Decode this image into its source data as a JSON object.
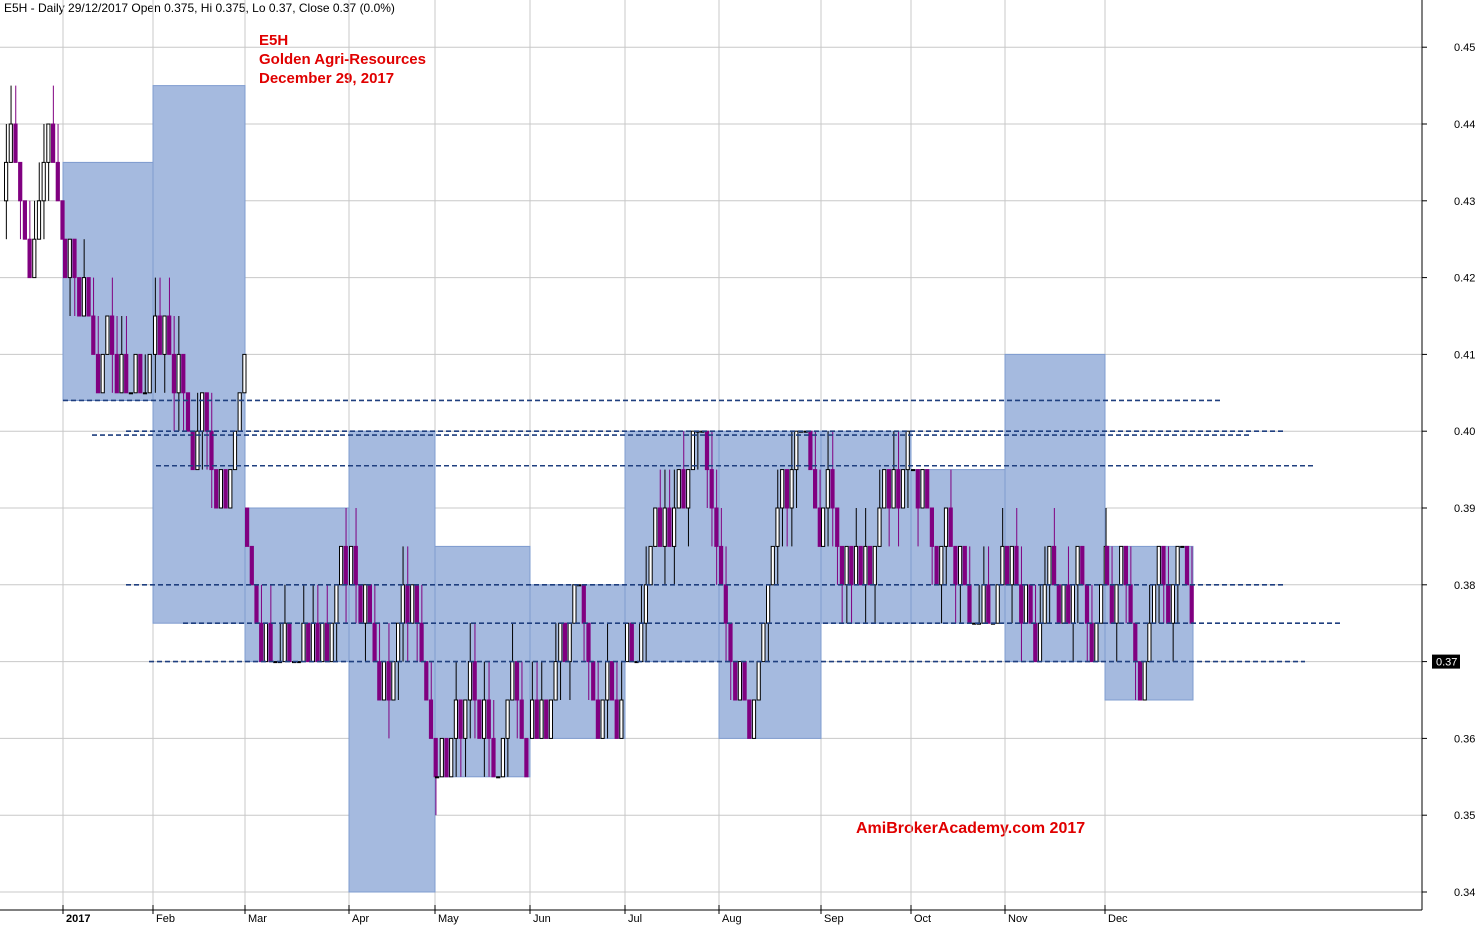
{
  "header": {
    "text": "E5H - Daily 29/12/2017 Open 0.375, Hi 0.375, Lo 0.37, Close 0.37 (0.0%)"
  },
  "titles": {
    "ticker": "E5H",
    "company": "Golden Agri-Resources",
    "date": "December 29, 2017"
  },
  "watermark": "AmiBrokerAcademy.com  2017",
  "colors": {
    "box_fill": "#a5badf",
    "box_stroke": "#7f9ccf",
    "up_bar": "#000000",
    "down_bar": "#800080",
    "support_line": "#1f3f7f",
    "grid": "#c8c8c8"
  },
  "chart_data": {
    "type": "candlestick",
    "symbol": "E5H",
    "ylim": [
      0.338,
      0.456
    ],
    "yticks": [
      0.34,
      0.35,
      0.36,
      0.37,
      0.38,
      0.39,
      0.4,
      0.41,
      0.42,
      0.43,
      0.44,
      0.45
    ],
    "ytick_labels": [
      "0.34",
      "0.35",
      "0.36",
      "0.37",
      "0.38",
      "0.39",
      "0.40",
      "0.41",
      "0.42",
      "0.43",
      "0.44",
      "0.45"
    ],
    "last_price": "0.37",
    "x_labels": [
      "2017",
      "Feb",
      "Mar",
      "Apr",
      "May",
      "Jun",
      "Jul",
      "Aug",
      "Sep",
      "Oct",
      "Nov",
      "Dec"
    ],
    "month_boxes": [
      {
        "month": "Jan",
        "high": 0.435,
        "low": 0.404
      },
      {
        "month": "Feb",
        "high": 0.445,
        "low": 0.375
      },
      {
        "month": "Mar",
        "high": 0.39,
        "low": 0.37
      },
      {
        "month": "Apr",
        "high": 0.4,
        "low": 0.34
      },
      {
        "month": "May",
        "high": 0.385,
        "low": 0.355
      },
      {
        "month": "Jun",
        "high": 0.38,
        "low": 0.36
      },
      {
        "month": "Jul",
        "high": 0.4,
        "low": 0.37
      },
      {
        "month": "Aug",
        "high": 0.4,
        "low": 0.36
      },
      {
        "month": "Sep",
        "high": 0.4,
        "low": 0.375
      },
      {
        "month": "Oct",
        "high": 0.395,
        "low": 0.375
      },
      {
        "month": "Nov",
        "high": 0.41,
        "low": 0.37
      },
      {
        "month": "Dec",
        "high": 0.385,
        "low": 0.365
      }
    ],
    "support_resistance_lines": [
      0.404,
      0.4,
      0.3995,
      0.3955,
      0.38,
      0.375,
      0.37
    ]
  }
}
